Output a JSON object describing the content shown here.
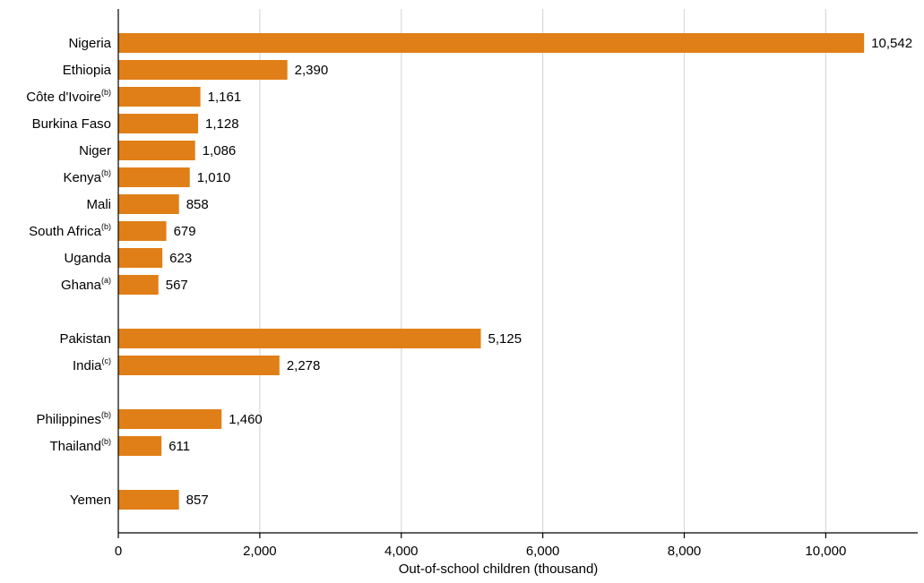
{
  "chart_data": {
    "type": "bar",
    "orientation": "horizontal",
    "xlabel": "Out-of-school children (thousand)",
    "ylabel": "",
    "xlim": [
      0,
      11300
    ],
    "xticks": [
      {
        "value": 0,
        "label": "0"
      },
      {
        "value": 2000,
        "label": "2,000"
      },
      {
        "value": 4000,
        "label": "4,000"
      },
      {
        "value": 6000,
        "label": "6,000"
      },
      {
        "value": 8000,
        "label": "8,000"
      },
      {
        "value": 10000,
        "label": "10,000"
      }
    ],
    "grid": true,
    "bar_color": "#E07F17",
    "groups": [
      {
        "bars": [
          {
            "name": "Nigeria",
            "note": "",
            "value": 10542,
            "value_label": "10,542"
          },
          {
            "name": "Ethiopia",
            "note": "",
            "value": 2390,
            "value_label": "2,390"
          },
          {
            "name": "Côte d'Ivoire",
            "note": "(b)",
            "value": 1161,
            "value_label": "1,161"
          },
          {
            "name": "Burkina Faso",
            "note": "",
            "value": 1128,
            "value_label": "1,128"
          },
          {
            "name": "Niger",
            "note": "",
            "value": 1086,
            "value_label": "1,086"
          },
          {
            "name": "Kenya",
            "note": "(b)",
            "value": 1010,
            "value_label": "1,010"
          },
          {
            "name": "Mali",
            "note": "",
            "value": 858,
            "value_label": "858"
          },
          {
            "name": "South Africa",
            "note": "(b)",
            "value": 679,
            "value_label": "679"
          },
          {
            "name": "Uganda",
            "note": "",
            "value": 623,
            "value_label": "623"
          },
          {
            "name": "Ghana",
            "note": "(a)",
            "value": 567,
            "value_label": "567"
          }
        ]
      },
      {
        "bars": [
          {
            "name": "Pakistan",
            "note": "",
            "value": 5125,
            "value_label": "5,125"
          },
          {
            "name": "India",
            "note": "(c)",
            "value": 2278,
            "value_label": "2,278"
          }
        ]
      },
      {
        "bars": [
          {
            "name": "Philippines",
            "note": "(b)",
            "value": 1460,
            "value_label": "1,460"
          },
          {
            "name": "Thailand",
            "note": "(b)",
            "value": 611,
            "value_label": "611"
          }
        ]
      },
      {
        "bars": [
          {
            "name": "Yemen",
            "note": "",
            "value": 857,
            "value_label": "857"
          }
        ]
      }
    ]
  }
}
